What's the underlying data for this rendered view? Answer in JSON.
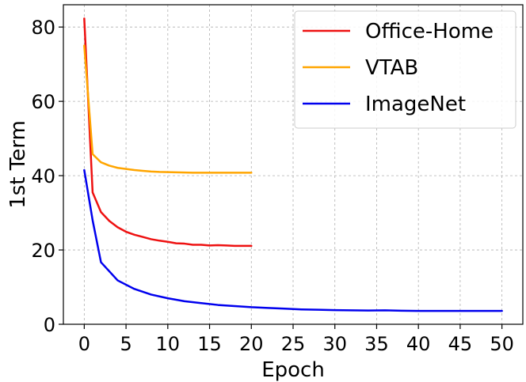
{
  "chart_data": {
    "type": "line",
    "title": "",
    "xlabel": "Epoch",
    "ylabel": "1st Term",
    "xlim": [
      -2.5,
      52.5
    ],
    "ylim": [
      0,
      86
    ],
    "xticks": [
      0,
      5,
      10,
      15,
      20,
      25,
      30,
      35,
      40,
      45,
      50
    ],
    "yticks": [
      0,
      20,
      40,
      60,
      80
    ],
    "grid": true,
    "legend_position": "top-right",
    "series": [
      {
        "name": "Office-Home",
        "color": "#ee1111",
        "x": [
          0,
          1,
          2,
          3,
          4,
          5,
          6,
          7,
          8,
          9,
          10,
          11,
          12,
          13,
          14,
          15,
          16,
          17,
          18,
          19,
          20
        ],
        "y": [
          82.3,
          35.5,
          30.2,
          27.8,
          26.1,
          24.9,
          24.1,
          23.5,
          22.9,
          22.5,
          22.2,
          21.8,
          21.7,
          21.4,
          21.4,
          21.2,
          21.3,
          21.2,
          21.1,
          21.1,
          21.1
        ]
      },
      {
        "name": "VTAB",
        "color": "#ffa500",
        "x": [
          0,
          1,
          2,
          3,
          4,
          5,
          6,
          7,
          8,
          9,
          10,
          11,
          12,
          13,
          14,
          15,
          16,
          17,
          18,
          19,
          20
        ],
        "y": [
          75.0,
          45.8,
          43.6,
          42.7,
          42.1,
          41.8,
          41.5,
          41.3,
          41.1,
          41.0,
          40.95,
          40.9,
          40.85,
          40.8,
          40.8,
          40.8,
          40.8,
          40.8,
          40.8,
          40.8,
          40.8
        ]
      },
      {
        "name": "ImageNet",
        "color": "#0000ee",
        "x": [
          0,
          1,
          2,
          4,
          6,
          8,
          10,
          12,
          14,
          16,
          18,
          20,
          22,
          24,
          26,
          28,
          30,
          32,
          34,
          36,
          38,
          40,
          42,
          44,
          46,
          48,
          50
        ],
        "y": [
          41.5,
          28.0,
          16.7,
          11.8,
          9.5,
          8.0,
          7.0,
          6.2,
          5.7,
          5.2,
          4.9,
          4.6,
          4.4,
          4.2,
          4.0,
          3.9,
          3.8,
          3.75,
          3.7,
          3.75,
          3.65,
          3.6,
          3.6,
          3.6,
          3.6,
          3.6,
          3.6
        ]
      }
    ]
  }
}
